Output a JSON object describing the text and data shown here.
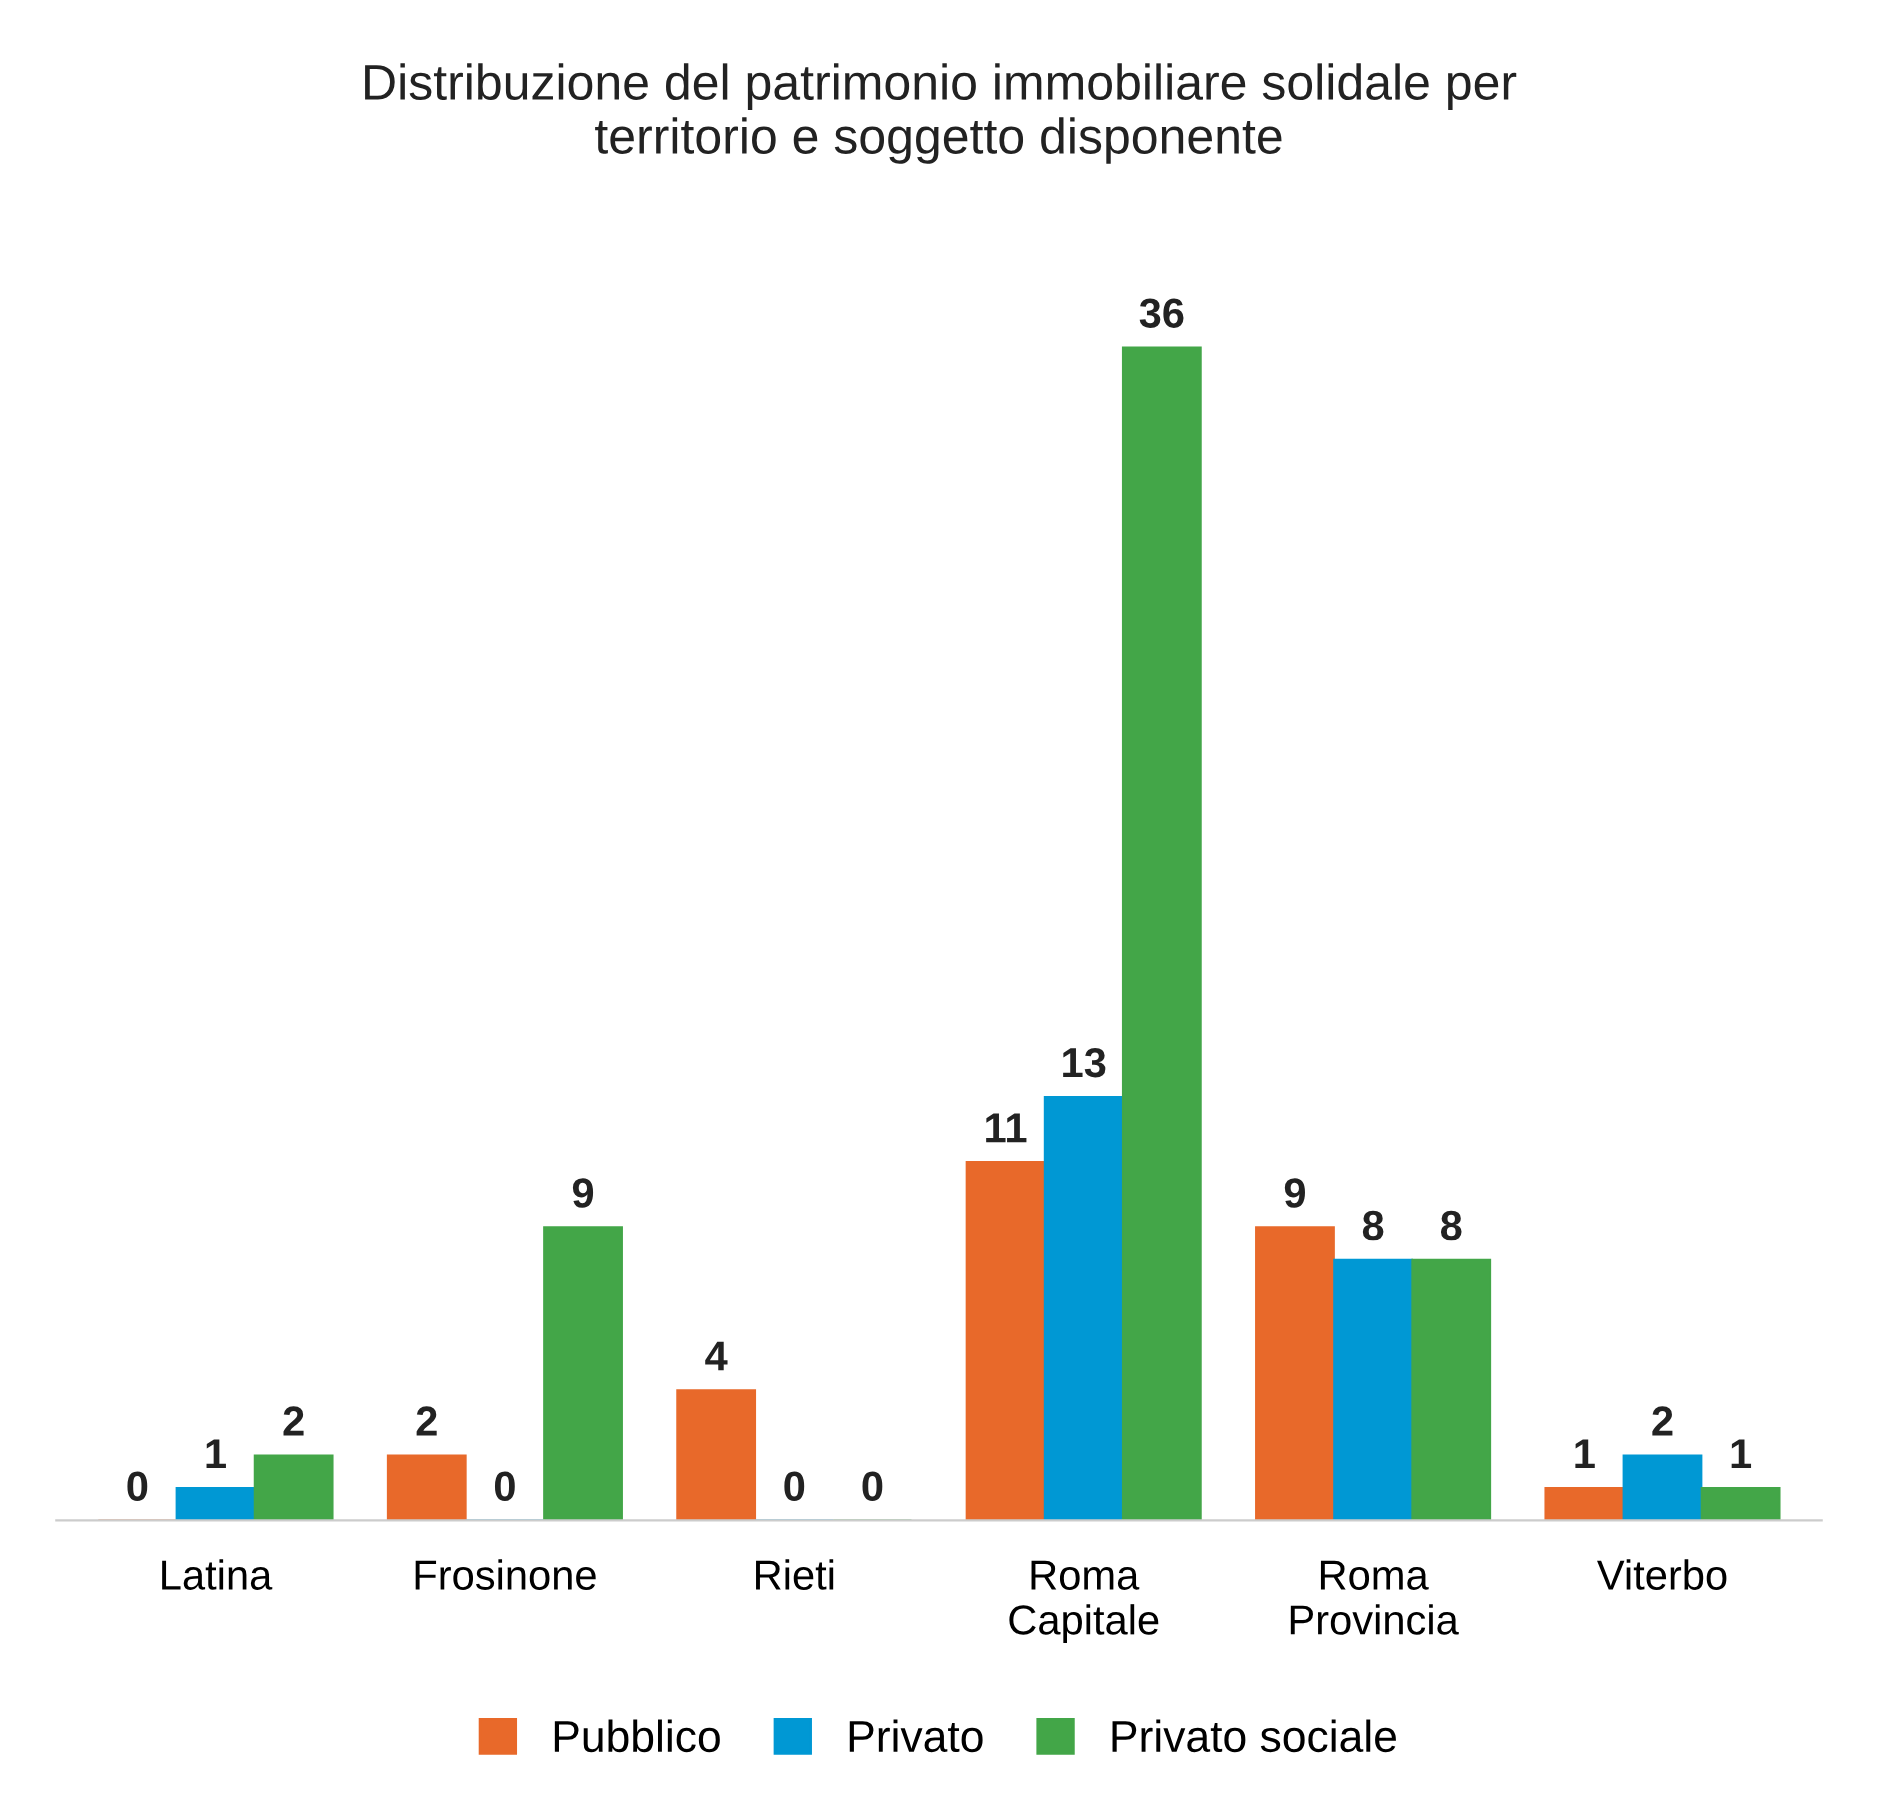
{
  "chart_data": {
    "type": "bar",
    "title": "Distribuzione del patrimonio immobiliare solidale per\nterritorio e soggetto disponente",
    "categories": [
      "Latina",
      "Frosinone",
      "Rieti",
      "Roma\nCapitale",
      "Roma\nProvincia",
      "Viterbo"
    ],
    "series": [
      {
        "name": "Pubblico",
        "color": "#e8692a",
        "values": [
          0,
          2,
          4,
          11,
          9,
          1
        ]
      },
      {
        "name": "Privato",
        "color": "#0098d4",
        "values": [
          1,
          0,
          0,
          13,
          8,
          2
        ]
      },
      {
        "name": "Privato sociale",
        "color": "#43a648",
        "values": [
          2,
          9,
          0,
          36,
          8,
          1
        ]
      }
    ],
    "data_labels": true,
    "legend": "bottom",
    "grid": false
  }
}
